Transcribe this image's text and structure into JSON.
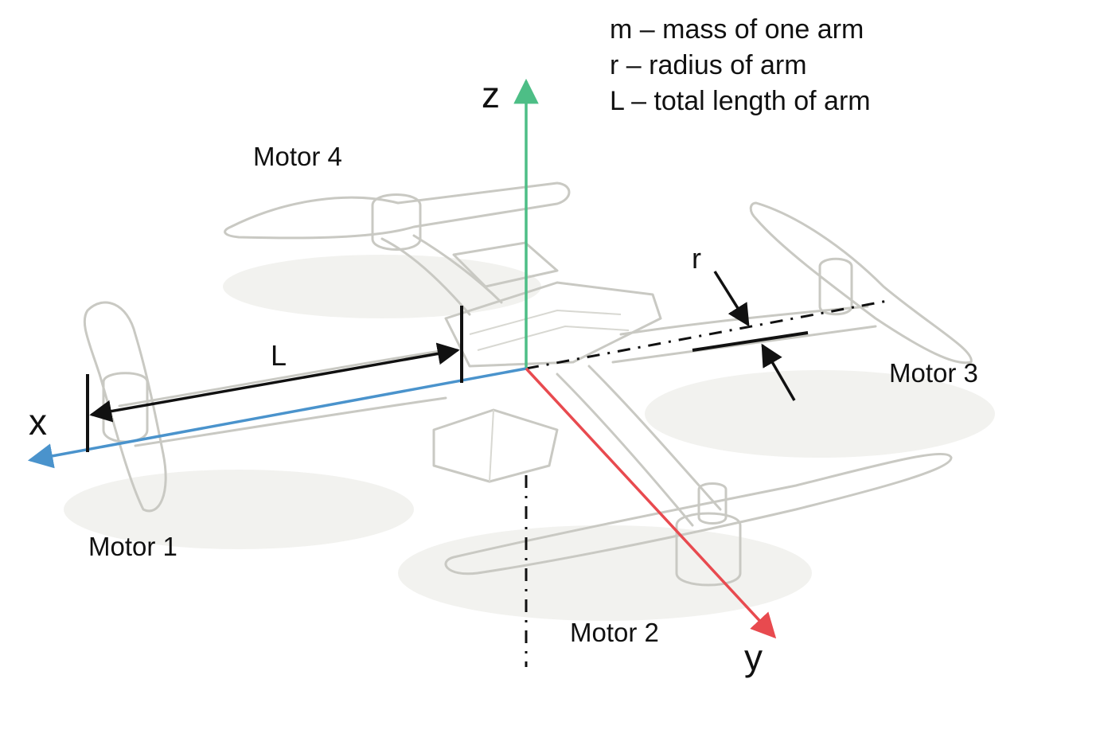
{
  "legend": {
    "m": "m – mass of one arm",
    "r": "r – radius of arm",
    "L": "L – total length of arm"
  },
  "axes": {
    "x": {
      "label": "x",
      "color": "#4a93cc"
    },
    "y": {
      "label": "y",
      "color": "#e84a4f"
    },
    "z": {
      "label": "z",
      "color": "#4dbe86"
    }
  },
  "motors": {
    "motor1": "Motor 1",
    "motor2": "Motor 2",
    "motor3": "Motor 3",
    "motor4": "Motor 4"
  },
  "dimensions": {
    "L": "L",
    "r": "r"
  }
}
